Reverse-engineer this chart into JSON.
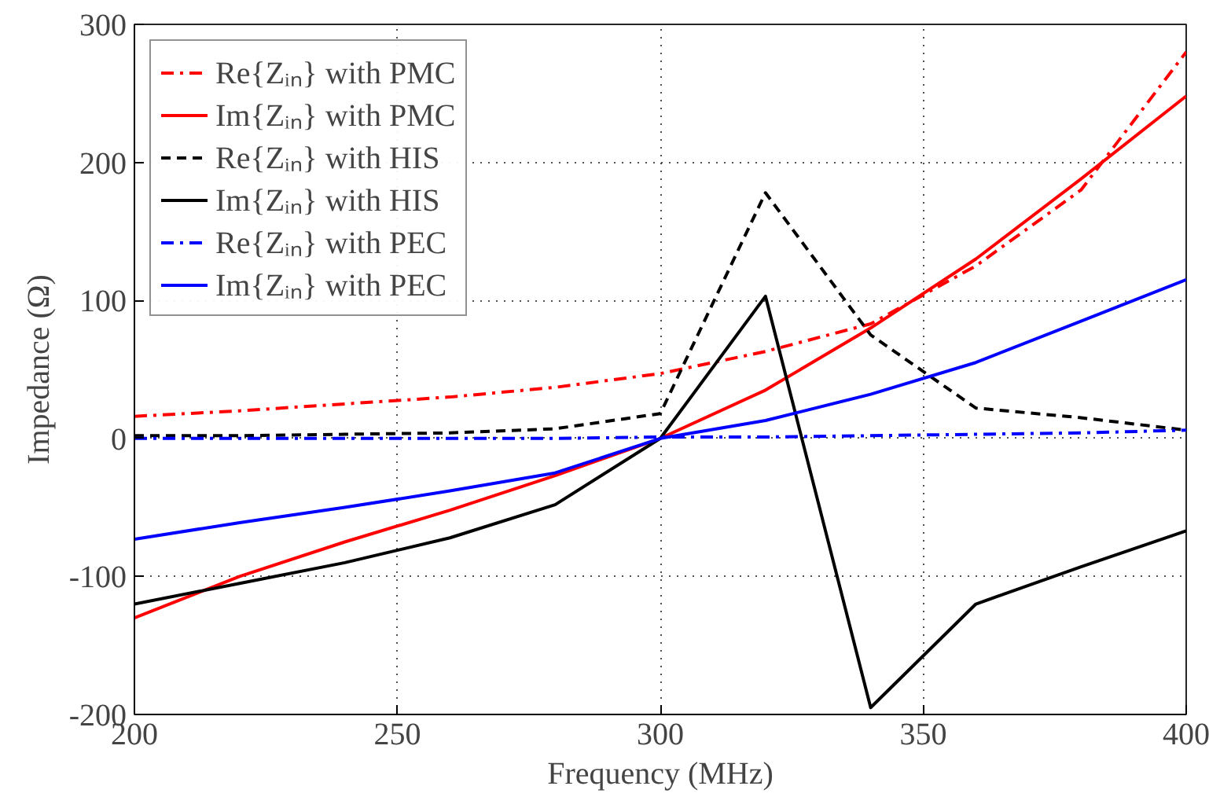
{
  "chart_data": {
    "type": "line",
    "xlabel": "Frequency (MHz)",
    "ylabel": "Impedance (Ω)",
    "x": [
      200,
      220,
      240,
      260,
      280,
      300,
      320,
      340,
      360,
      380,
      400
    ],
    "xlim": [
      200,
      400
    ],
    "xticks": [
      200,
      250,
      300,
      350,
      400
    ],
    "ylim": [
      -200,
      300
    ],
    "yticks": [
      -200,
      -100,
      0,
      100,
      200,
      300
    ],
    "grid": true,
    "legend": "top left",
    "marker": "none",
    "series": [
      {
        "name": "Re{Zᵢₙ} with PMC",
        "color": "#ff0000",
        "line_style": "dashdot",
        "values": [
          16,
          20,
          25,
          30,
          37,
          47,
          63,
          83,
          125,
          180,
          280
        ]
      },
      {
        "name": "Im{Zᵢₙ} with PMC",
        "color": "#ff0000",
        "line_style": "solid",
        "values": [
          -130,
          -100,
          -75,
          -52,
          -27,
          0,
          35,
          80,
          130,
          188,
          248
        ]
      },
      {
        "name": "Re{Zᵢₙ} with HIS",
        "color": "#000000",
        "line_style": "dashed",
        "values": [
          2,
          2,
          3,
          4,
          7,
          18,
          178,
          75,
          22,
          15,
          6
        ]
      },
      {
        "name": "Im{Zᵢₙ} with HIS",
        "color": "#000000",
        "line_style": "solid",
        "values": [
          -120,
          -105,
          -90,
          -72,
          -48,
          0,
          103,
          -195,
          -120,
          -93,
          -67
        ]
      },
      {
        "name": "Re{Zᵢₙ} with PEC",
        "color": "#0000ff",
        "line_style": "dashdot",
        "values": [
          0,
          0,
          0,
          0,
          0,
          1,
          1,
          2,
          3,
          4,
          6
        ]
      },
      {
        "name": "Im{Zᵢₙ} with PEC",
        "color": "#0000ff",
        "line_style": "solid",
        "values": [
          -73,
          -61,
          -50,
          -38,
          -25,
          0,
          13,
          32,
          55,
          85,
          115
        ]
      }
    ]
  }
}
